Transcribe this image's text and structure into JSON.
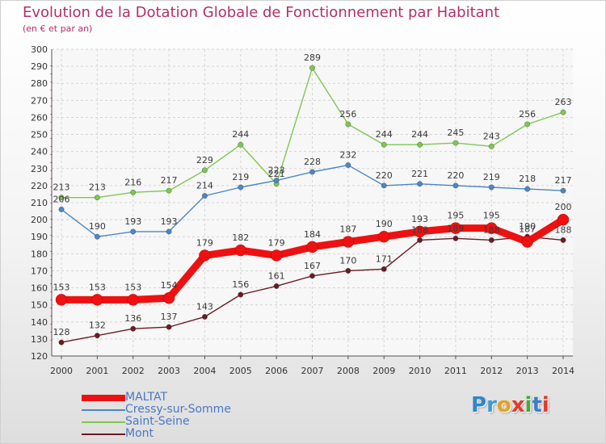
{
  "title": "Evolution de la Dotation Globale de Fonctionnement par Habitant",
  "subtitle": "(en € et par an)",
  "logo": {
    "text": "Proxiti",
    "letter_colors": [
      "#2f86c8",
      "#3a9ad6",
      "#e6a21a",
      "#e23a2a",
      "#4aa63a",
      "#3a7fc8",
      "#e23a2a"
    ]
  },
  "chart_data": {
    "type": "line",
    "x": [
      "2000",
      "2001",
      "2002",
      "2003",
      "2004",
      "2005",
      "2006",
      "2007",
      "2008",
      "2009",
      "2010",
      "2011",
      "2012",
      "2013",
      "2014"
    ],
    "ylim": [
      120,
      300
    ],
    "y_ticks": [
      120,
      130,
      140,
      150,
      160,
      170,
      180,
      190,
      200,
      210,
      220,
      230,
      240,
      250,
      260,
      270,
      280,
      290,
      300
    ],
    "grid": true,
    "legend_position": "bottom-left",
    "series": [
      {
        "name": "MALTAT",
        "color": "#ee1111",
        "values": [
          153,
          153,
          153,
          154,
          179,
          182,
          179,
          184,
          187,
          190,
          193,
          195,
          195,
          187,
          200
        ]
      },
      {
        "name": "Cressy-sur-Somme",
        "color": "#4d86c6",
        "values": [
          206,
          190,
          193,
          193,
          214,
          219,
          223,
          228,
          232,
          220,
          221,
          220,
          219,
          218,
          217
        ]
      },
      {
        "name": "Saint-Seine",
        "color": "#7dc850",
        "values": [
          213,
          213,
          216,
          217,
          229,
          244,
          221,
          289,
          256,
          244,
          244,
          245,
          243,
          256,
          263
        ]
      },
      {
        "name": "Mont",
        "color": "#6b1a22",
        "values": [
          128,
          132,
          136,
          137,
          143,
          156,
          161,
          167,
          170,
          171,
          188,
          189,
          188,
          190,
          188
        ]
      }
    ]
  }
}
